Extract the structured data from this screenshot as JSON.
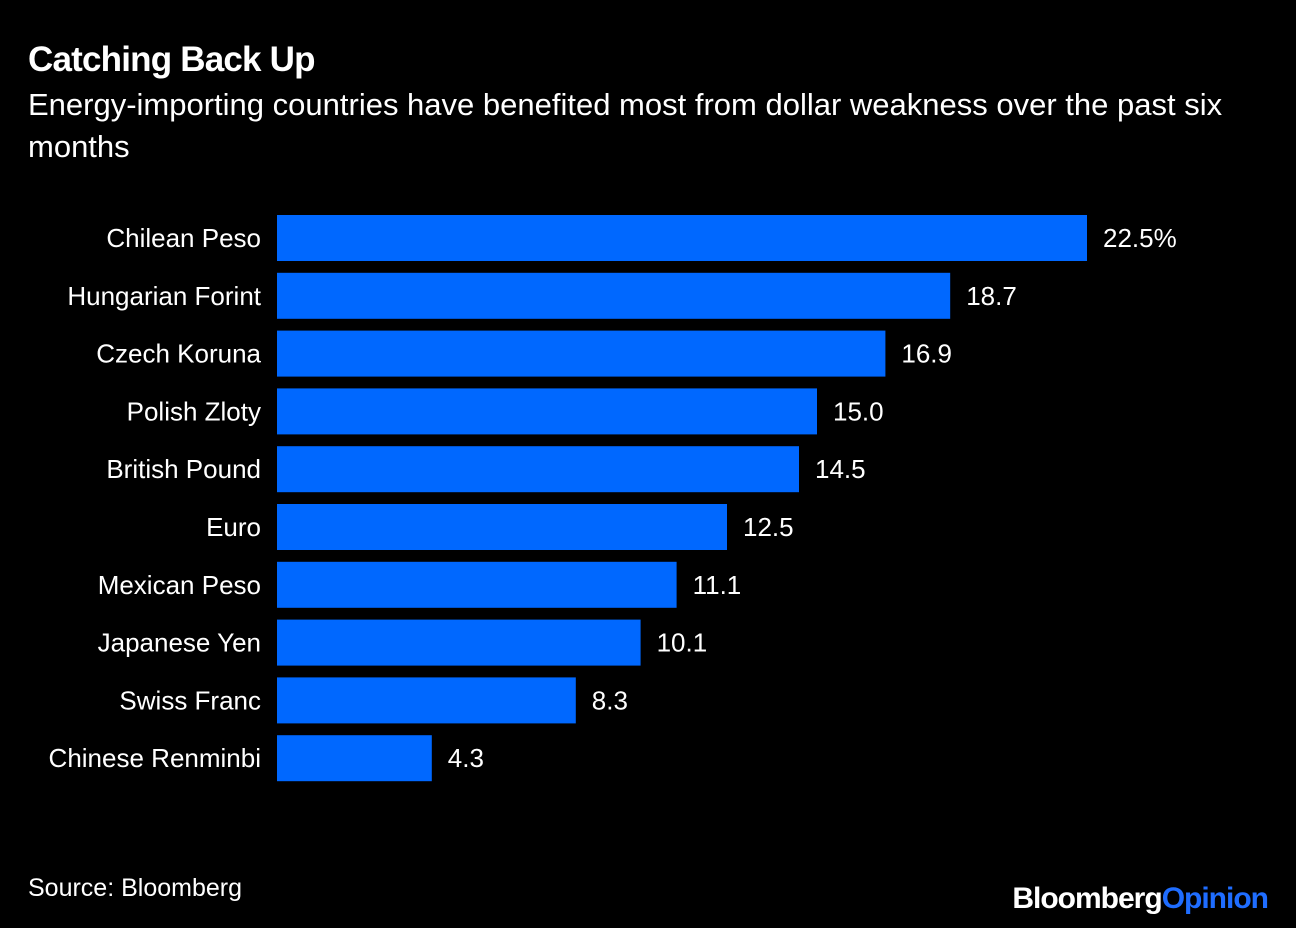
{
  "chart_data": {
    "type": "bar",
    "orientation": "horizontal",
    "title": "Catching Back Up",
    "subtitle": "Energy-importing countries have benefited most from dollar weakness over the past six months",
    "categories": [
      "Chilean Peso",
      "Hungarian Forint",
      "Czech Koruna",
      "Polish Zloty",
      "British Pound",
      "Euro",
      "Mexican Peso",
      "Japanese Yen",
      "Swiss Franc",
      "Chinese Renminbi"
    ],
    "values": [
      22.5,
      18.7,
      16.9,
      15.0,
      14.5,
      12.5,
      11.1,
      10.1,
      8.3,
      4.3
    ],
    "value_labels": [
      "22.5%",
      "18.7",
      "16.9",
      "15.0",
      "14.5",
      "12.5",
      "11.1",
      "10.1",
      "8.3",
      "4.3"
    ],
    "xlim": [
      0,
      22.5
    ],
    "xlabel": "",
    "ylabel": "",
    "grid": false,
    "legend": "none",
    "bar_color": "#0068ff"
  },
  "footer": {
    "source": "Source: Bloomberg",
    "logo_part1": "Bloomberg",
    "logo_part2": "Opinion"
  },
  "colors": {
    "background": "#000000",
    "text": "#ffffff",
    "bar": "#0068ff",
    "logo_accent": "#1f6dff"
  }
}
